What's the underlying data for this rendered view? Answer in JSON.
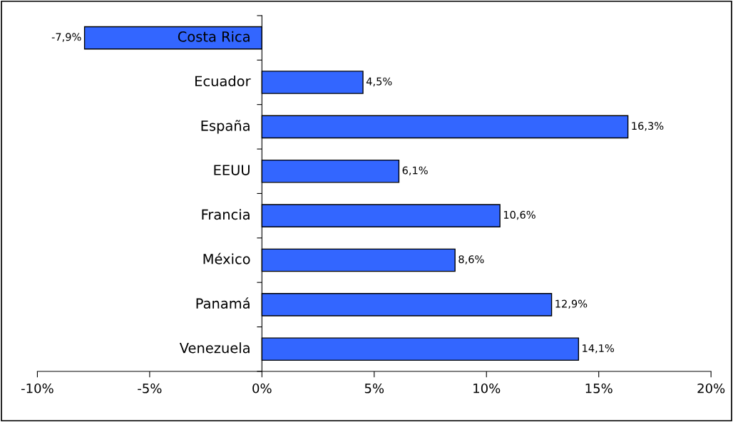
{
  "chart_data": {
    "type": "bar",
    "orientation": "horizontal",
    "categories": [
      "Costa Rica",
      "Ecuador",
      "España",
      "EEUU",
      "Francia",
      "México",
      "Panamá",
      "Venezuela"
    ],
    "values": [
      -7.9,
      4.5,
      16.3,
      6.1,
      10.6,
      8.6,
      12.9,
      14.1
    ],
    "value_labels": [
      "-7,9%",
      "4,5%",
      "16,3%",
      "6,1%",
      "10,6%",
      "8,6%",
      "12,9%",
      "14,1%"
    ],
    "color": "#3366ff",
    "xlim": [
      -10,
      20
    ],
    "xticks": [
      {
        "value": -10,
        "label": "-10%"
      },
      {
        "value": -5,
        "label": "-5%"
      },
      {
        "value": 0,
        "label": "0%"
      },
      {
        "value": 5,
        "label": "5%"
      },
      {
        "value": 10,
        "label": "10%"
      },
      {
        "value": 15,
        "label": "15%"
      },
      {
        "value": 20,
        "label": "20%"
      }
    ],
    "grid": false,
    "legend": false
  }
}
